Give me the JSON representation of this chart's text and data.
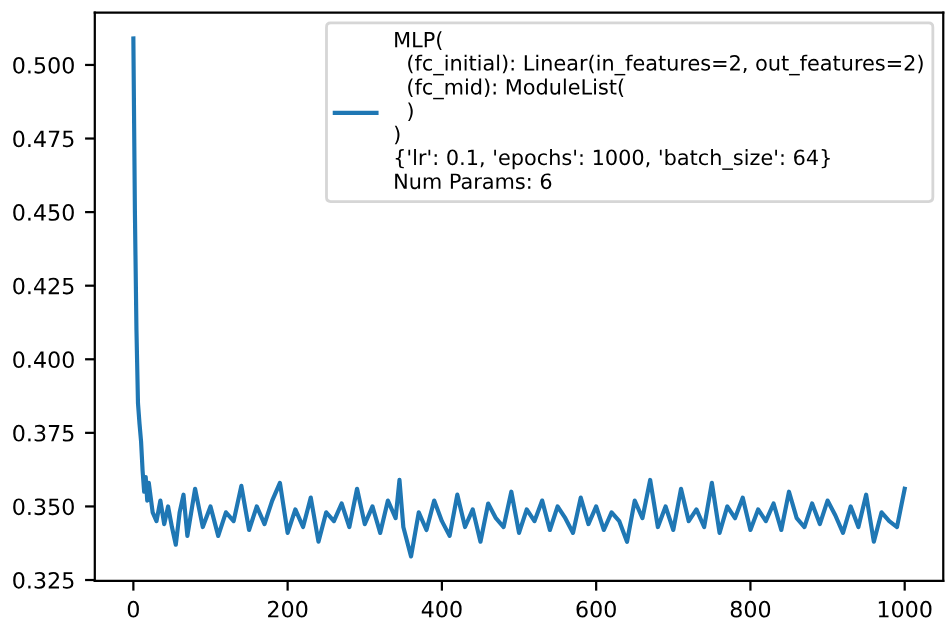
{
  "chart_data": {
    "type": "line",
    "legend": "top right",
    "grid": false,
    "xlim": [
      -50,
      1050
    ],
    "ylim": [
      0.3247,
      0.5178
    ],
    "xticks": [
      0,
      200,
      400,
      600,
      800,
      1000
    ],
    "yticks": [
      {
        "value": 0.325,
        "label": "0.325"
      },
      {
        "value": 0.35,
        "label": "0.350"
      },
      {
        "value": 0.375,
        "label": "0.375"
      },
      {
        "value": 0.4,
        "label": "0.400"
      },
      {
        "value": 0.425,
        "label": "0.425"
      },
      {
        "value": 0.45,
        "label": "0.450"
      },
      {
        "value": 0.475,
        "label": "0.475"
      },
      {
        "value": 0.5,
        "label": "0.500"
      }
    ],
    "series": [
      {
        "name": "MLP(\n  (fc_initial): Linear(in_features=2, out_features=2)\n  (fc_mid): ModuleList(\n  )\n)\n{'lr': 0.1, 'epochs': 1000, 'batch_size': 64}\nNum Params: 6",
        "color": "#1f77b4",
        "x": [
          0,
          2,
          4,
          6,
          8,
          10,
          12,
          14,
          16,
          18,
          20,
          25,
          30,
          35,
          40,
          45,
          50,
          55,
          60,
          65,
          70,
          80,
          90,
          100,
          110,
          120,
          130,
          140,
          150,
          160,
          170,
          180,
          190,
          200,
          210,
          220,
          230,
          240,
          250,
          260,
          270,
          280,
          290,
          300,
          310,
          320,
          330,
          340,
          345,
          350,
          360,
          370,
          380,
          390,
          400,
          410,
          420,
          430,
          440,
          450,
          460,
          470,
          480,
          490,
          500,
          510,
          520,
          530,
          540,
          550,
          560,
          570,
          580,
          590,
          600,
          610,
          620,
          630,
          640,
          650,
          660,
          670,
          680,
          690,
          700,
          710,
          720,
          730,
          740,
          750,
          760,
          770,
          780,
          790,
          800,
          810,
          820,
          830,
          840,
          850,
          860,
          870,
          880,
          890,
          900,
          910,
          920,
          930,
          940,
          950,
          960,
          970,
          980,
          990,
          1000
        ],
        "values": [
          0.509,
          0.45,
          0.41,
          0.385,
          0.378,
          0.372,
          0.362,
          0.355,
          0.36,
          0.352,
          0.358,
          0.348,
          0.345,
          0.352,
          0.344,
          0.35,
          0.343,
          0.337,
          0.348,
          0.354,
          0.34,
          0.356,
          0.343,
          0.35,
          0.34,
          0.348,
          0.345,
          0.357,
          0.342,
          0.35,
          0.344,
          0.352,
          0.358,
          0.341,
          0.349,
          0.343,
          0.353,
          0.338,
          0.348,
          0.345,
          0.351,
          0.343,
          0.356,
          0.344,
          0.35,
          0.341,
          0.352,
          0.346,
          0.359,
          0.343,
          0.333,
          0.348,
          0.342,
          0.352,
          0.345,
          0.34,
          0.354,
          0.343,
          0.349,
          0.338,
          0.351,
          0.346,
          0.343,
          0.355,
          0.341,
          0.349,
          0.345,
          0.352,
          0.342,
          0.35,
          0.346,
          0.341,
          0.353,
          0.344,
          0.35,
          0.342,
          0.348,
          0.345,
          0.338,
          0.352,
          0.346,
          0.359,
          0.343,
          0.35,
          0.342,
          0.356,
          0.345,
          0.349,
          0.343,
          0.358,
          0.341,
          0.35,
          0.346,
          0.353,
          0.342,
          0.349,
          0.345,
          0.351,
          0.342,
          0.355,
          0.346,
          0.343,
          0.351,
          0.344,
          0.352,
          0.347,
          0.341,
          0.35,
          0.343,
          0.354,
          0.338,
          0.348,
          0.345,
          0.343,
          0.356
        ]
      }
    ]
  }
}
